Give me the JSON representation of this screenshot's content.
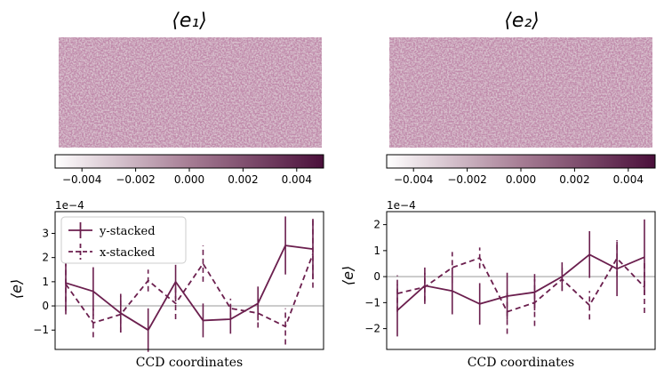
{
  "colors": {
    "accent": "#6b1f4e",
    "zero_line": "#bbbbbb",
    "cmap_low": "#ffffff",
    "cmap_high": "#4a0f3a"
  },
  "maps": [
    {
      "title": "⟨e₁⟩",
      "colorbar": {
        "range": [
          -0.005,
          0.005
        ],
        "ticks": [
          "−0.004",
          "−0.002",
          "0.000",
          "0.002",
          "0.004"
        ]
      }
    },
    {
      "title": "⟨e₂⟩",
      "colorbar": {
        "range": [
          -0.005,
          0.005
        ],
        "ticks": [
          "−0.004",
          "−0.002",
          "0.000",
          "0.002",
          "0.004"
        ]
      }
    }
  ],
  "chart_data": [
    {
      "type": "line",
      "title": "",
      "xlabel": "CCD coordinates",
      "ylabel": "⟨e⟩",
      "scale_label": "1e−4",
      "x": [
        1,
        2,
        3,
        4,
        5,
        6,
        7,
        8,
        9,
        10
      ],
      "ylim": [
        -1.8,
        3.9
      ],
      "yticks": [
        -1,
        0,
        1,
        2,
        3
      ],
      "ytick_labels": [
        "−1",
        "0",
        "1",
        "2",
        "3"
      ],
      "legend": {
        "position": "top-left",
        "entries": [
          "y-stacked",
          "x-stacked"
        ]
      },
      "series": [
        {
          "name": "y-stacked",
          "style": "solid",
          "values": [
            0.95,
            0.6,
            -0.3,
            -1.0,
            1.0,
            -0.6,
            -0.55,
            0.1,
            2.5,
            2.35
          ],
          "errors": [
            1.3,
            1.0,
            0.8,
            0.9,
            0.7,
            0.7,
            0.6,
            0.7,
            1.2,
            1.25
          ]
        },
        {
          "name": "x-stacked",
          "style": "dashed",
          "values": [
            0.9,
            -0.7,
            -0.35,
            1.05,
            0.1,
            1.75,
            -0.1,
            -0.3,
            -0.85,
            2.15
          ],
          "errors": [
            1.1,
            0.6,
            0.75,
            0.45,
            0.65,
            0.75,
            0.4,
            0.6,
            0.75,
            1.4
          ]
        }
      ]
    },
    {
      "type": "line",
      "title": "",
      "xlabel": "CCD coordinates",
      "ylabel": "⟨e⟩",
      "scale_label": "1e−4",
      "x": [
        1,
        2,
        3,
        4,
        5,
        6,
        7,
        8,
        9,
        10
      ],
      "ylim": [
        -2.8,
        2.5
      ],
      "yticks": [
        -2,
        -1,
        0,
        1,
        2
      ],
      "ytick_labels": [
        "−2",
        "−1",
        "0",
        "1",
        "2"
      ],
      "legend": null,
      "series": [
        {
          "name": "y-stacked",
          "style": "solid",
          "values": [
            -1.3,
            -0.35,
            -0.55,
            -1.05,
            -0.75,
            -0.6,
            0.0,
            0.85,
            0.3,
            0.75
          ],
          "errors": [
            1.0,
            0.7,
            0.9,
            0.8,
            0.9,
            0.7,
            0.55,
            0.9,
            1.05,
            1.45
          ]
        },
        {
          "name": "x-stacked",
          "style": "dashed",
          "values": [
            -0.65,
            -0.4,
            0.35,
            0.72,
            -1.35,
            -1.0,
            -0.1,
            -1.1,
            0.7,
            -0.4
          ],
          "errors": [
            0.7,
            0.55,
            0.6,
            0.4,
            0.85,
            0.9,
            0.45,
            0.55,
            0.7,
            1.0
          ]
        }
      ]
    }
  ]
}
